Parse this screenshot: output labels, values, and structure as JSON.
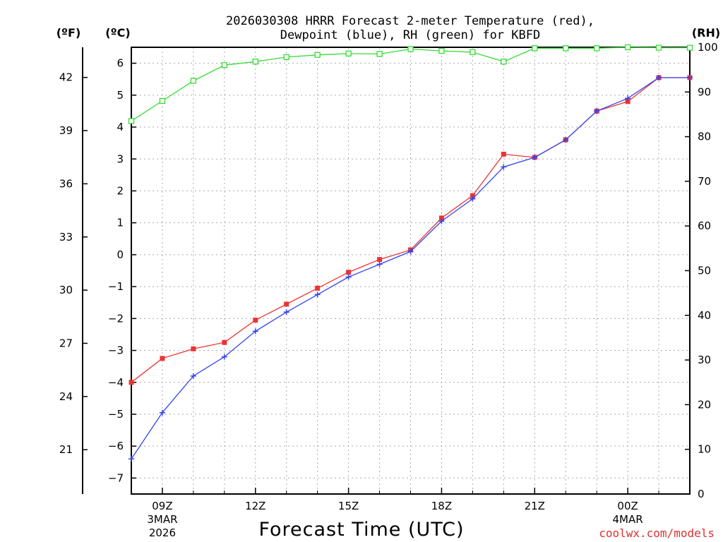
{
  "chart_data": {
    "type": "line",
    "title_line1": "2026030308 HRRR Forecast 2-meter Temperature (red),",
    "title_line2": "Dewpoint (blue), RH (green) for KBFD",
    "xlabel": "Forecast Time (UTC)",
    "credit": "coolwx.com/models",
    "unit_left_outer": "(ºF)",
    "unit_left_inner": "(ºC)",
    "unit_right": "(RH)",
    "x_hours": [
      8,
      9,
      10,
      11,
      12,
      13,
      14,
      15,
      16,
      17,
      18,
      19,
      20,
      21,
      22,
      23,
      24,
      25,
      26
    ],
    "xlim": [
      8,
      26
    ],
    "x_ticks": [
      {
        "hour": 9,
        "label": "09Z",
        "sub1": "3MAR",
        "sub2": "2026"
      },
      {
        "hour": 12,
        "label": "12Z",
        "sub1": "",
        "sub2": ""
      },
      {
        "hour": 15,
        "label": "15Z",
        "sub1": "",
        "sub2": ""
      },
      {
        "hour": 18,
        "label": "18Z",
        "sub1": "",
        "sub2": ""
      },
      {
        "hour": 21,
        "label": "21Z",
        "sub1": "",
        "sub2": ""
      },
      {
        "hour": 24,
        "label": "00Z",
        "sub1": "4MAR",
        "sub2": ""
      }
    ],
    "c_ylim": [
      -7.5,
      6.5
    ],
    "c_ticks": [
      6,
      5,
      4,
      3,
      2,
      1,
      0,
      -1,
      -2,
      -3,
      -4,
      -5,
      -6,
      -7
    ],
    "c_tick_labels": [
      "6",
      "5",
      "4",
      "3",
      "2",
      "1",
      "0",
      "−1",
      "−2",
      "−3",
      "−4",
      "−5",
      "−6",
      "−7"
    ],
    "f_ticks": [
      42,
      39,
      36,
      33,
      30,
      27,
      24,
      21
    ],
    "f_tick_labels": [
      "42",
      "39",
      "36",
      "33",
      "30",
      "27",
      "24",
      "21"
    ],
    "rh_ylim": [
      0,
      100
    ],
    "rh_ticks": [
      100,
      90,
      80,
      70,
      60,
      50,
      40,
      30,
      20,
      10,
      0
    ],
    "rh_tick_labels": [
      "100",
      "90",
      "80",
      "70",
      "60",
      "50",
      "40",
      "30",
      "20",
      "10",
      "0"
    ],
    "series": [
      {
        "name": "Temperature",
        "unit": "C",
        "color": "#ee3333",
        "marker": "filled-square",
        "values": [
          -4.0,
          -3.25,
          -2.95,
          -2.75,
          -2.05,
          -1.55,
          -1.05,
          -0.55,
          -0.15,
          0.15,
          1.15,
          1.85,
          3.15,
          3.05,
          3.6,
          4.5,
          4.8,
          5.55,
          5.55
        ]
      },
      {
        "name": "Dewpoint",
        "unit": "C",
        "color": "#3344ee",
        "marker": "plus",
        "values": [
          -6.4,
          -4.95,
          -3.8,
          -3.2,
          -2.4,
          -1.8,
          -1.25,
          -0.7,
          -0.3,
          0.1,
          1.05,
          1.75,
          2.75,
          3.05,
          3.6,
          4.5,
          4.9,
          5.55,
          5.55
        ]
      },
      {
        "name": "RH",
        "unit": "%",
        "color": "#33dd33",
        "marker": "open-square",
        "values": [
          83.5,
          88.0,
          92.5,
          96.0,
          96.8,
          97.8,
          98.3,
          98.6,
          98.5,
          99.6,
          99.2,
          98.9,
          96.8,
          99.8,
          99.8,
          99.8,
          100.0,
          99.9,
          99.9
        ]
      }
    ]
  }
}
